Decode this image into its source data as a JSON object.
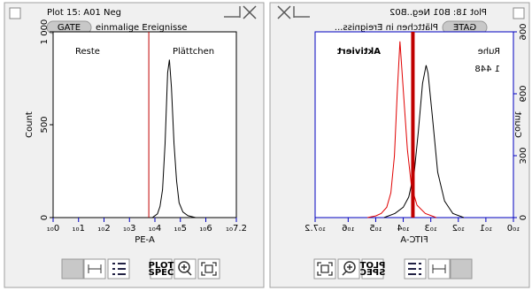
{
  "plot_spec": [
    "PLOT",
    "SPEC"
  ],
  "panels": [
    {
      "title": "Plot 15: A01 Neg",
      "gate": "GATE",
      "gate_text": "einmalige Ereignisse",
      "flipped": false,
      "chart_data": {
        "type": "line",
        "x_label": "PE-A",
        "y_label": "Count",
        "axis_color": "#000000",
        "xlim": [
          0,
          7.2
        ],
        "xticks": [
          {
            "value": 0,
            "label": "₁₀0"
          },
          {
            "value": 1,
            "label": "₁₀1"
          },
          {
            "value": 2,
            "label": "₁₀2"
          },
          {
            "value": 3,
            "label": "₁₀3"
          },
          {
            "value": 4,
            "label": "₁₀4"
          },
          {
            "value": 5,
            "label": "₁₀5"
          },
          {
            "value": 6,
            "label": "₁₀6"
          },
          {
            "value": 7.2,
            "label": "₁₀7.2"
          }
        ],
        "ylim": [
          0,
          1000
        ],
        "yticks": [
          0,
          500,
          {
            "value": 1000,
            "label": "1 000"
          }
        ],
        "gate_line": {
          "value": 3.76,
          "color": "#c00000",
          "width": 1
        },
        "annotations": [
          {
            "text": "Reste",
            "color": "#000000"
          },
          {
            "text": "Plättchen",
            "color": "#000000"
          }
        ],
        "series": [
          {
            "color": "#000000",
            "x": [
              3.9,
              4.1,
              4.2,
              4.3,
              4.4,
              4.5,
              4.57,
              4.65,
              4.75,
              4.85,
              4.95,
              5.1,
              5.3,
              5.6
            ],
            "values": [
              0,
              20,
              60,
              150,
              400,
              780,
              850,
              700,
              400,
              200,
              80,
              30,
              10,
              0
            ]
          }
        ]
      }
    },
    {
      "title": "Plot 18: B01 Neg..B02",
      "gate": "GATE",
      "gate_text": "Plättchen in Ereigniss...",
      "flipped": true,
      "chart_data": {
        "type": "line",
        "x_label": "FITC-A",
        "y_label": "Count",
        "axis_color": "#0000c0",
        "xlim": [
          0,
          7.2
        ],
        "xticks": [
          {
            "value": 0,
            "label": "₁₀0"
          },
          {
            "value": 1,
            "label": "₁₀1"
          },
          {
            "value": 2,
            "label": "₁₀2"
          },
          {
            "value": 3,
            "label": "₁₀3"
          },
          {
            "value": 4,
            "label": "₁₀4"
          },
          {
            "value": 5,
            "label": "₁₀5"
          },
          {
            "value": 6,
            "label": "₁₀6"
          },
          {
            "value": 7.2,
            "label": "₁₀7.2"
          }
        ],
        "ylim": [
          0,
          900
        ],
        "yticks": [
          0,
          300,
          600,
          900
        ],
        "gate_line": {
          "value": 3.65,
          "color": "#c00000",
          "width": 4
        },
        "annotations": [
          {
            "text": "Aktiviert",
            "color": "#000000"
          },
          {
            "text": "Ruhe",
            "color": "#0000c0"
          },
          {
            "text": "1 448",
            "color": "#0000c0"
          }
        ],
        "series": [
          {
            "color": "#e00000",
            "x": [
              2.8,
              3.2,
              3.5,
              3.7,
              3.85,
              4.0,
              4.12,
              4.22,
              4.32,
              4.45,
              4.6,
              4.8,
              5.0,
              5.3
            ],
            "values": [
              0,
              20,
              60,
              150,
              330,
              620,
              854,
              600,
              300,
              120,
              50,
              20,
              8,
              0
            ]
          },
          {
            "color": "#000000",
            "x": [
              1.8,
              2.2,
              2.5,
              2.75,
              2.95,
              3.1,
              3.17,
              3.3,
              3.45,
              3.6,
              3.8,
              4.0,
              4.3,
              4.7
            ],
            "values": [
              0,
              20,
              80,
              220,
              500,
              700,
              738,
              650,
              420,
              220,
              100,
              50,
              20,
              0
            ]
          }
        ]
      }
    }
  ]
}
